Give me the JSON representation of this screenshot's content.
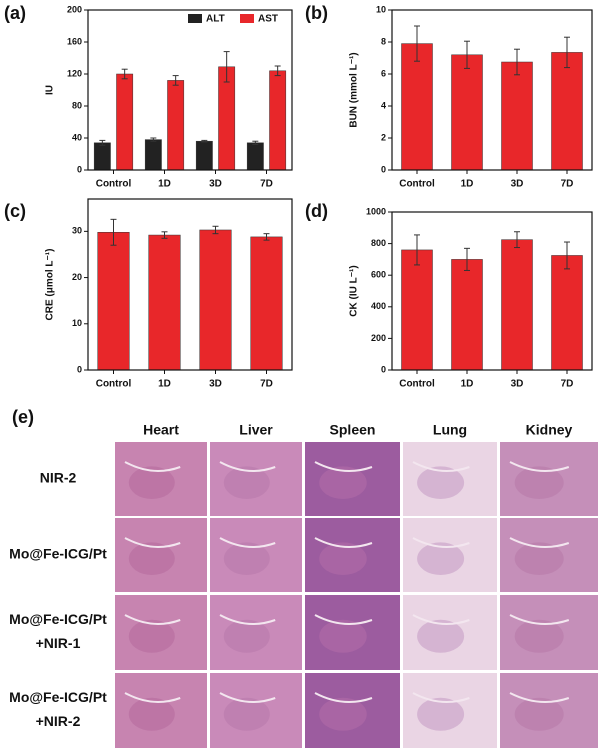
{
  "chart_data": [
    {
      "type": "bar",
      "panel": "(a)",
      "y_label": "IU",
      "categories": [
        "Control",
        "1D",
        "3D",
        "7D"
      ],
      "series": [
        {
          "name": "ALT",
          "color": "#222222",
          "values": [
            34,
            38,
            36,
            34
          ],
          "errors": [
            3,
            2,
            1,
            2
          ]
        },
        {
          "name": "AST",
          "color": "#e8272a",
          "values": [
            120,
            112,
            129,
            124
          ],
          "errors": [
            6,
            6,
            19,
            6
          ]
        }
      ],
      "ylim": [
        0,
        200
      ],
      "yticks": [
        0,
        40,
        80,
        120,
        160,
        200
      ],
      "legend": "upper right"
    },
    {
      "type": "bar",
      "panel": "(b)",
      "y_label": "BUN (mmol L⁻¹)",
      "categories": [
        "Control",
        "1D",
        "3D",
        "7D"
      ],
      "color": "#e8272a",
      "values": [
        7.9,
        7.2,
        6.75,
        7.35
      ],
      "errors": [
        1.1,
        0.85,
        0.8,
        0.95
      ],
      "ylim": [
        0,
        10
      ],
      "yticks": [
        0,
        2,
        4,
        6,
        8,
        10
      ]
    },
    {
      "type": "bar",
      "panel": "(c)",
      "y_label": "CRE (μmol L⁻¹)",
      "categories": [
        "Control",
        "1D",
        "3D",
        "7D"
      ],
      "color": "#e8272a",
      "values": [
        29.8,
        29.2,
        30.3,
        28.8
      ],
      "errors": [
        2.8,
        0.7,
        0.8,
        0.7
      ],
      "ylim": [
        0,
        37
      ],
      "yticks": [
        0,
        10,
        20,
        30
      ]
    },
    {
      "type": "bar",
      "panel": "(d)",
      "y_label": "CK (IU L⁻¹)",
      "categories": [
        "Control",
        "1D",
        "3D",
        "7D"
      ],
      "color": "#e8272a",
      "values": [
        760,
        700,
        825,
        725
      ],
      "errors": [
        95,
        70,
        50,
        85
      ],
      "ylim": [
        0,
        1000
      ],
      "yticks": [
        0,
        200,
        400,
        600,
        800,
        1000
      ]
    }
  ],
  "histology": {
    "panel": "(e)",
    "columns": [
      "Heart",
      "Liver",
      "Spleen",
      "Lung",
      "Kidney"
    ],
    "rows": [
      [
        "NIR-2"
      ],
      [
        "Mo@Fe-ICG/Pt"
      ],
      [
        "Mo@Fe-ICG/Pt",
        "+NIR-1"
      ],
      [
        "Mo@Fe-ICG/Pt",
        "+NIR-2"
      ]
    ]
  }
}
